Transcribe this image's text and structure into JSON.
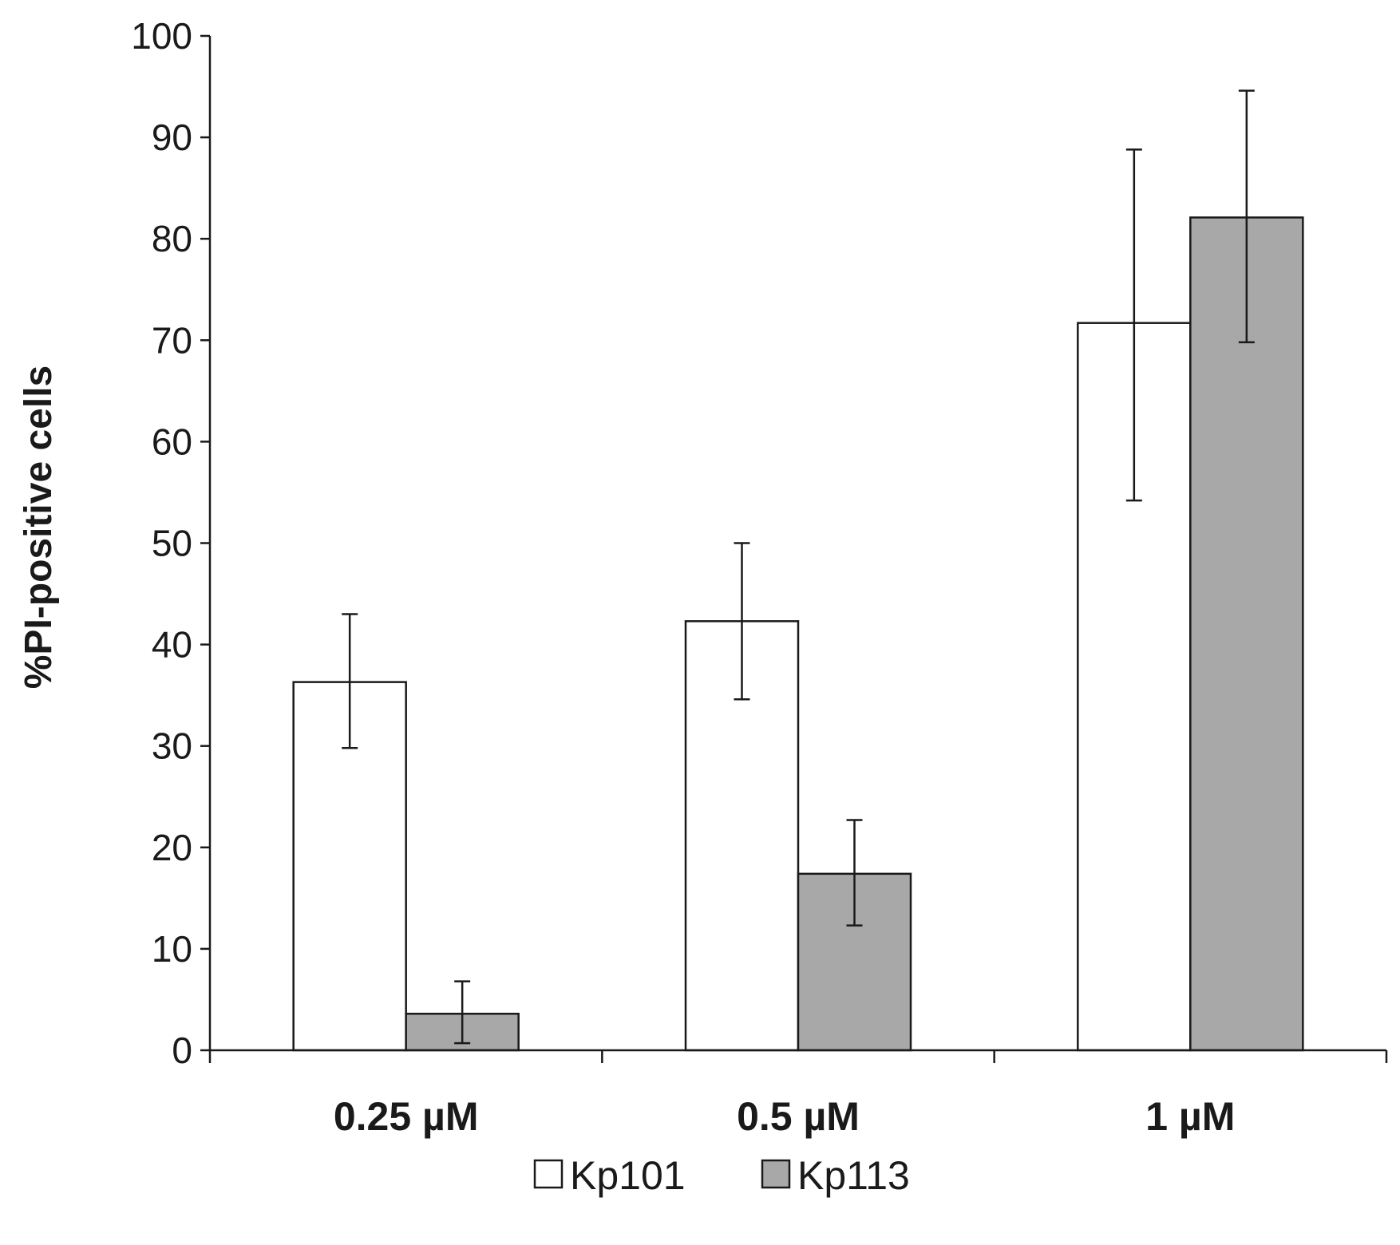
{
  "chart_data": {
    "type": "bar",
    "title": "",
    "xlabel": "",
    "ylabel": "%PI-positive cells",
    "ylim": [
      0,
      100
    ],
    "yticks": [
      "0",
      "10",
      "20",
      "30",
      "40",
      "50",
      "60",
      "70",
      "80",
      "90",
      "100"
    ],
    "categories": [
      "0.25 µM",
      "0.5 µM",
      "1 µM"
    ],
    "series": [
      {
        "name": "Kp101",
        "values": [
          36.3,
          42.3,
          71.7
        ],
        "error_low": [
          29.8,
          34.6,
          54.2
        ],
        "error_high": [
          43.0,
          50.0,
          88.8
        ],
        "color": "#ffffff"
      },
      {
        "name": "Kp113",
        "values": [
          3.6,
          17.4,
          82.1
        ],
        "error_low": [
          0.7,
          12.3,
          69.8
        ],
        "error_high": [
          6.8,
          22.7,
          94.6
        ],
        "color": "#a8a8a8"
      }
    ],
    "grid": false,
    "legend_position": "bottom-center",
    "error_bars": true
  }
}
